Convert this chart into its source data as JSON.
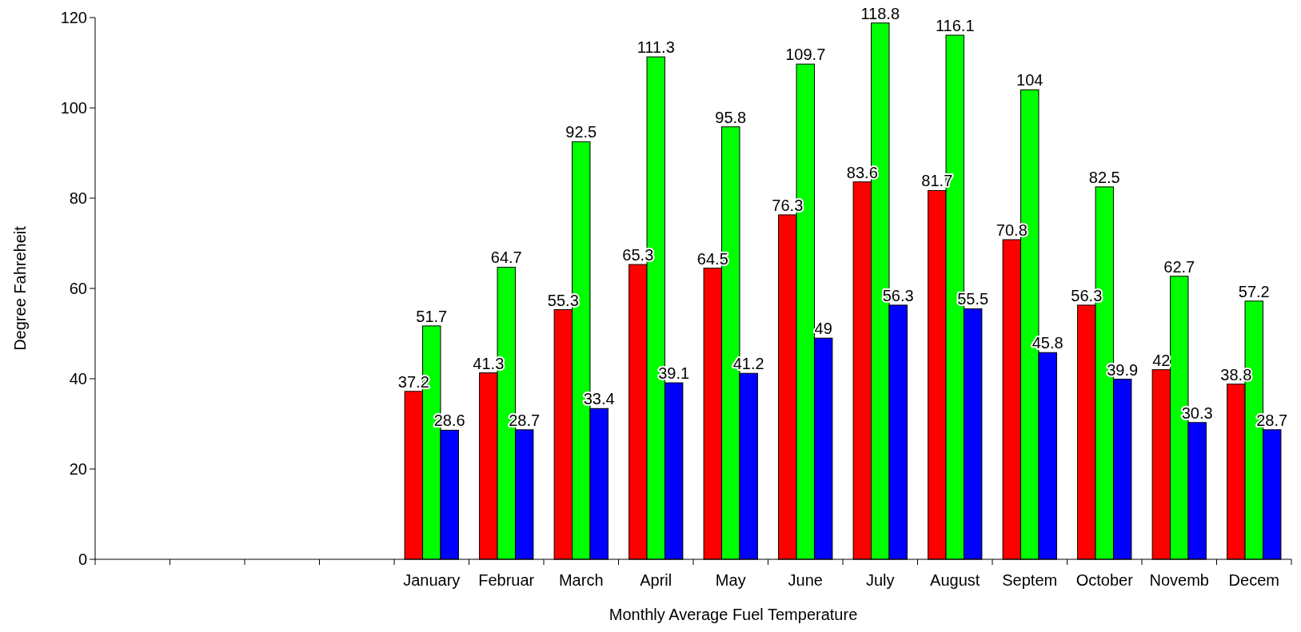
{
  "chart_data": {
    "type": "bar",
    "xlabel": "Monthly Average Fuel Temperature",
    "ylabel": "Degree Fahreheit",
    "categories": [
      null,
      null,
      null,
      null,
      "January",
      "Februar",
      "March",
      "April",
      "May",
      "June",
      "July",
      "August",
      "Septem",
      "October",
      "Novemb",
      "Decem"
    ],
    "series": [
      {
        "color": "#ff0000",
        "values": [
          null,
          null,
          null,
          null,
          37.2,
          41.3,
          55.3,
          65.3,
          64.5,
          76.3,
          83.6,
          81.7,
          70.8,
          56.3,
          42,
          38.8
        ]
      },
      {
        "color": "#00ff00",
        "values": [
          null,
          null,
          null,
          null,
          51.7,
          64.7,
          92.5,
          111.3,
          95.8,
          109.7,
          118.8,
          116.1,
          104,
          82.5,
          62.7,
          57.2
        ]
      },
      {
        "color": "#0000ff",
        "values": [
          null,
          null,
          null,
          null,
          28.6,
          28.7,
          33.4,
          39.1,
          41.2,
          49,
          56.3,
          55.5,
          45.8,
          39.9,
          30.3,
          28.7
        ]
      }
    ],
    "ylim": [
      0,
      120
    ],
    "yticks": [
      0,
      20,
      40,
      60,
      80,
      100,
      120
    ],
    "data_labels": true,
    "grid": false
  }
}
